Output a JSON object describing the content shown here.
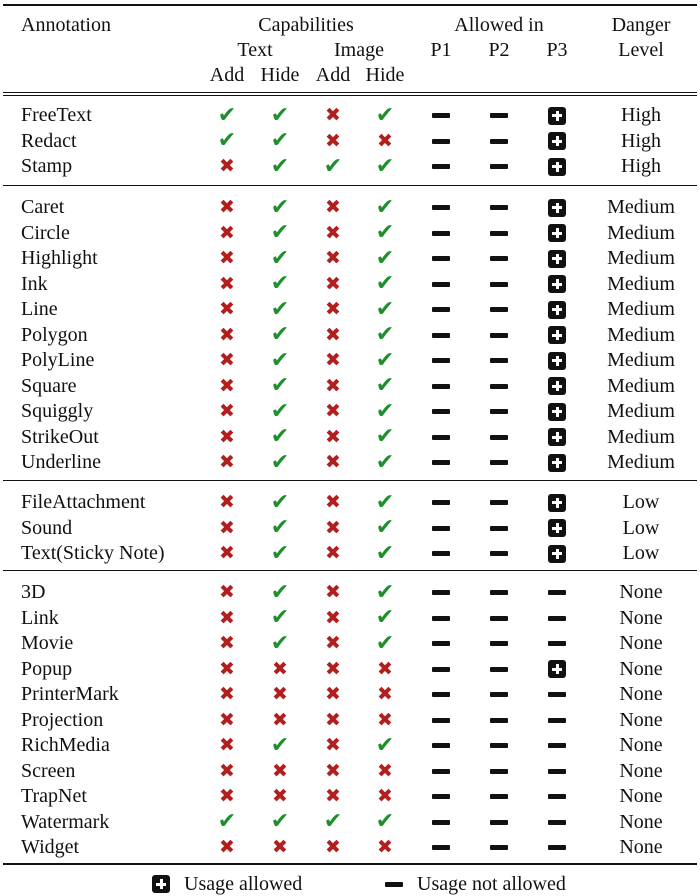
{
  "header": {
    "annotation": "Annotation",
    "capabilities": "Capabilities",
    "text": "Text",
    "image": "Image",
    "add": "Add",
    "hide": "Hide",
    "allowed_in": "Allowed in",
    "p1": "P1",
    "p2": "P2",
    "p3": "P3",
    "danger": "Danger",
    "level": "Level"
  },
  "groups": [
    {
      "rows": [
        {
          "name": "FreeText",
          "text_add": "yes",
          "text_hide": "yes",
          "image_add": "no",
          "image_hide": "yes",
          "p1": "dash",
          "p2": "dash",
          "p3": "plus",
          "danger": "High"
        },
        {
          "name": "Redact",
          "text_add": "yes",
          "text_hide": "yes",
          "image_add": "no",
          "image_hide": "no",
          "p1": "dash",
          "p2": "dash",
          "p3": "plus",
          "danger": "High"
        },
        {
          "name": "Stamp",
          "text_add": "no",
          "text_hide": "yes",
          "image_add": "yes",
          "image_hide": "yes",
          "p1": "dash",
          "p2": "dash",
          "p3": "plus",
          "danger": "High"
        }
      ]
    },
    {
      "rows": [
        {
          "name": "Caret",
          "text_add": "no",
          "text_hide": "yes",
          "image_add": "no",
          "image_hide": "yes",
          "p1": "dash",
          "p2": "dash",
          "p3": "plus",
          "danger": "Medium"
        },
        {
          "name": "Circle",
          "text_add": "no",
          "text_hide": "yes",
          "image_add": "no",
          "image_hide": "yes",
          "p1": "dash",
          "p2": "dash",
          "p3": "plus",
          "danger": "Medium"
        },
        {
          "name": "Highlight",
          "text_add": "no",
          "text_hide": "yes",
          "image_add": "no",
          "image_hide": "yes",
          "p1": "dash",
          "p2": "dash",
          "p3": "plus",
          "danger": "Medium"
        },
        {
          "name": "Ink",
          "text_add": "no",
          "text_hide": "yes",
          "image_add": "no",
          "image_hide": "yes",
          "p1": "dash",
          "p2": "dash",
          "p3": "plus",
          "danger": "Medium"
        },
        {
          "name": "Line",
          "text_add": "no",
          "text_hide": "yes",
          "image_add": "no",
          "image_hide": "yes",
          "p1": "dash",
          "p2": "dash",
          "p3": "plus",
          "danger": "Medium"
        },
        {
          "name": "Polygon",
          "text_add": "no",
          "text_hide": "yes",
          "image_add": "no",
          "image_hide": "yes",
          "p1": "dash",
          "p2": "dash",
          "p3": "plus",
          "danger": "Medium"
        },
        {
          "name": "PolyLine",
          "text_add": "no",
          "text_hide": "yes",
          "image_add": "no",
          "image_hide": "yes",
          "p1": "dash",
          "p2": "dash",
          "p3": "plus",
          "danger": "Medium"
        },
        {
          "name": "Square",
          "text_add": "no",
          "text_hide": "yes",
          "image_add": "no",
          "image_hide": "yes",
          "p1": "dash",
          "p2": "dash",
          "p3": "plus",
          "danger": "Medium"
        },
        {
          "name": "Squiggly",
          "text_add": "no",
          "text_hide": "yes",
          "image_add": "no",
          "image_hide": "yes",
          "p1": "dash",
          "p2": "dash",
          "p3": "plus",
          "danger": "Medium"
        },
        {
          "name": "StrikeOut",
          "text_add": "no",
          "text_hide": "yes",
          "image_add": "no",
          "image_hide": "yes",
          "p1": "dash",
          "p2": "dash",
          "p3": "plus",
          "danger": "Medium"
        },
        {
          "name": "Underline",
          "text_add": "no",
          "text_hide": "yes",
          "image_add": "no",
          "image_hide": "yes",
          "p1": "dash",
          "p2": "dash",
          "p3": "plus",
          "danger": "Medium"
        }
      ]
    },
    {
      "rows": [
        {
          "name": "FileAttachment",
          "text_add": "no",
          "text_hide": "yes",
          "image_add": "no",
          "image_hide": "yes",
          "p1": "dash",
          "p2": "dash",
          "p3": "plus",
          "danger": "Low"
        },
        {
          "name": "Sound",
          "text_add": "no",
          "text_hide": "yes",
          "image_add": "no",
          "image_hide": "yes",
          "p1": "dash",
          "p2": "dash",
          "p3": "plus",
          "danger": "Low"
        },
        {
          "name": "Text(Sticky Note)",
          "text_add": "no",
          "text_hide": "yes",
          "image_add": "no",
          "image_hide": "yes",
          "p1": "dash",
          "p2": "dash",
          "p3": "plus",
          "danger": "Low"
        }
      ]
    },
    {
      "rows": [
        {
          "name": "3D",
          "text_add": "no",
          "text_hide": "yes",
          "image_add": "no",
          "image_hide": "yes",
          "p1": "dash",
          "p2": "dash",
          "p3": "dash",
          "danger": "None"
        },
        {
          "name": "Link",
          "text_add": "no",
          "text_hide": "yes",
          "image_add": "no",
          "image_hide": "yes",
          "p1": "dash",
          "p2": "dash",
          "p3": "dash",
          "danger": "None"
        },
        {
          "name": "Movie",
          "text_add": "no",
          "text_hide": "yes",
          "image_add": "no",
          "image_hide": "yes",
          "p1": "dash",
          "p2": "dash",
          "p3": "dash",
          "danger": "None"
        },
        {
          "name": "Popup",
          "text_add": "no",
          "text_hide": "no",
          "image_add": "no",
          "image_hide": "no",
          "p1": "dash",
          "p2": "dash",
          "p3": "plus",
          "danger": "None"
        },
        {
          "name": "PrinterMark",
          "text_add": "no",
          "text_hide": "no",
          "image_add": "no",
          "image_hide": "no",
          "p1": "dash",
          "p2": "dash",
          "p3": "dash",
          "danger": "None"
        },
        {
          "name": "Projection",
          "text_add": "no",
          "text_hide": "no",
          "image_add": "no",
          "image_hide": "no",
          "p1": "dash",
          "p2": "dash",
          "p3": "dash",
          "danger": "None"
        },
        {
          "name": "RichMedia",
          "text_add": "no",
          "text_hide": "yes",
          "image_add": "no",
          "image_hide": "yes",
          "p1": "dash",
          "p2": "dash",
          "p3": "dash",
          "danger": "None"
        },
        {
          "name": "Screen",
          "text_add": "no",
          "text_hide": "no",
          "image_add": "no",
          "image_hide": "no",
          "p1": "dash",
          "p2": "dash",
          "p3": "dash",
          "danger": "None"
        },
        {
          "name": "TrapNet",
          "text_add": "no",
          "text_hide": "no",
          "image_add": "no",
          "image_hide": "no",
          "p1": "dash",
          "p2": "dash",
          "p3": "dash",
          "danger": "None"
        },
        {
          "name": "Watermark",
          "text_add": "yes",
          "text_hide": "yes",
          "image_add": "yes",
          "image_hide": "yes",
          "p1": "dash",
          "p2": "dash",
          "p3": "dash",
          "danger": "None"
        },
        {
          "name": "Widget",
          "text_add": "no",
          "text_hide": "no",
          "image_add": "no",
          "image_hide": "no",
          "p1": "dash",
          "p2": "dash",
          "p3": "dash",
          "danger": "None"
        }
      ]
    }
  ],
  "legend": {
    "allowed_icon": "plus-box-icon",
    "allowed_label": "Usage allowed",
    "not_allowed_icon": "minus-icon",
    "not_allowed_label": "Usage not allowed"
  },
  "colors": {
    "check": "#1f8f2e",
    "cross": "#b21f1f",
    "ink": "#111111"
  }
}
